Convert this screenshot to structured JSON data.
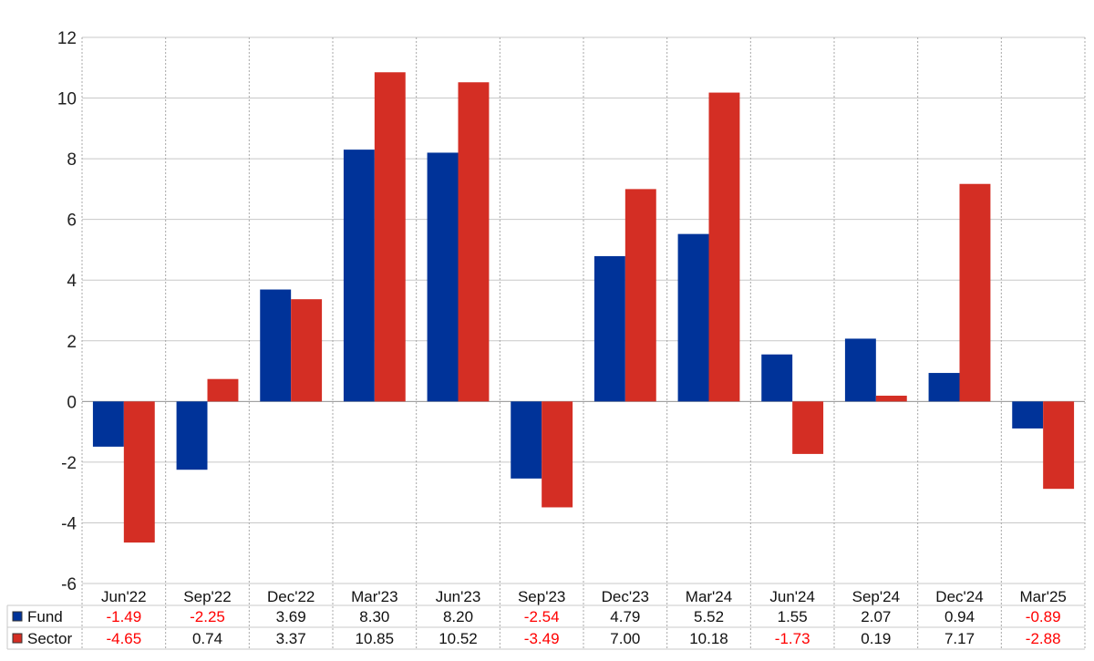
{
  "chart_data": {
    "type": "bar",
    "categories": [
      "Jun'22",
      "Sep'22",
      "Dec'22",
      "Mar'23",
      "Jun'23",
      "Sep'23",
      "Dec'23",
      "Mar'24",
      "Jun'24",
      "Sep'24",
      "Dec'24",
      "Mar'25"
    ],
    "series": [
      {
        "name": "Fund",
        "color": "#003399",
        "values": [
          -1.49,
          -2.25,
          3.69,
          8.3,
          8.2,
          -2.54,
          4.79,
          5.52,
          1.55,
          2.07,
          0.94,
          -0.89
        ],
        "labels": [
          "-1.49",
          "-2.25",
          "3.69",
          "8.30",
          "8.20",
          "-2.54",
          "4.79",
          "5.52",
          "1.55",
          "2.07",
          "0.94",
          "-0.89"
        ]
      },
      {
        "name": "Sector",
        "color": "#d42e24",
        "values": [
          -4.65,
          0.74,
          3.37,
          10.85,
          10.52,
          -3.49,
          7.0,
          10.18,
          -1.73,
          0.19,
          7.17,
          -2.88
        ],
        "labels": [
          "-4.65",
          "0.74",
          "3.37",
          "10.85",
          "10.52",
          "-3.49",
          "7.00",
          "10.18",
          "-1.73",
          "0.19",
          "7.17",
          "-2.88"
        ]
      }
    ],
    "ylim": [
      -6,
      12
    ],
    "yticks": [
      "12",
      "10",
      "8",
      "6",
      "4",
      "2",
      "0",
      "-2",
      "-4",
      "-6"
    ],
    "ytick_values": [
      12,
      10,
      8,
      6,
      4,
      2,
      0,
      -2,
      -4,
      -6
    ],
    "grid": true,
    "legend": "data-table-left",
    "negative_value_color": "#ff0000"
  }
}
